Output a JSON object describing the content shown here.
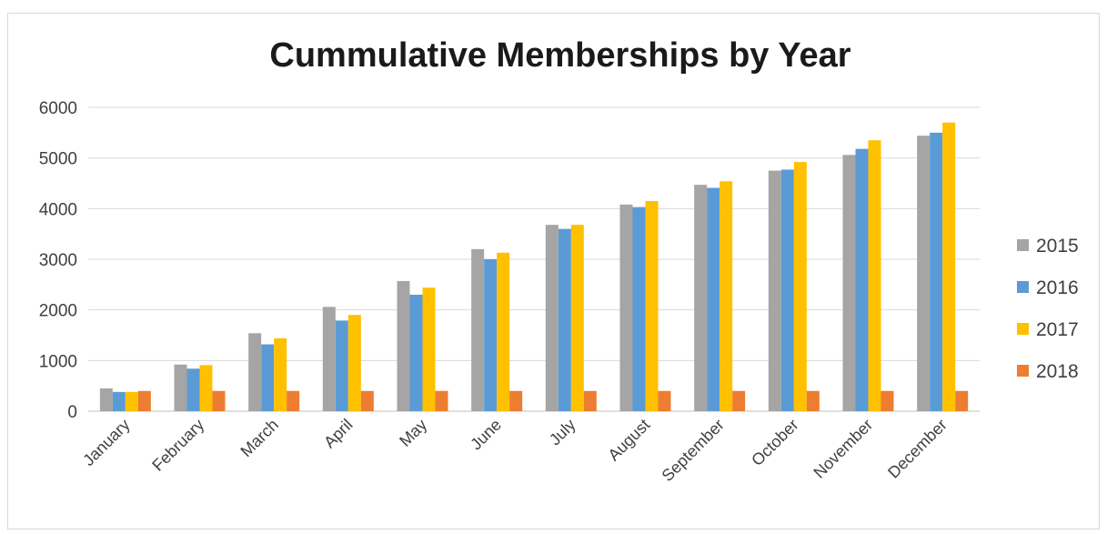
{
  "chart_data": {
    "type": "bar",
    "title": "Cummulative Memberships by Year",
    "xlabel": "",
    "ylabel": "",
    "ylim": [
      0,
      6000
    ],
    "yticks": [
      0,
      1000,
      2000,
      3000,
      4000,
      5000,
      6000
    ],
    "grid": true,
    "legend_position": "right",
    "categories": [
      "January",
      "February",
      "March",
      "April",
      "May",
      "June",
      "July",
      "August",
      "September",
      "October",
      "November",
      "December"
    ],
    "series": [
      {
        "name": "2015",
        "color": "#a5a5a5",
        "values": [
          450,
          920,
          1540,
          2060,
          2570,
          3200,
          3680,
          4080,
          4470,
          4750,
          5060,
          5440
        ]
      },
      {
        "name": "2016",
        "color": "#5b9bd5",
        "values": [
          380,
          840,
          1320,
          1790,
          2300,
          3000,
          3600,
          4030,
          4410,
          4770,
          5180,
          5500
        ]
      },
      {
        "name": "2017",
        "color": "#ffc000",
        "values": [
          380,
          910,
          1440,
          1900,
          2440,
          3130,
          3680,
          4150,
          4540,
          4920,
          5350,
          5700
        ]
      },
      {
        "name": "2018",
        "color": "#ed7d31",
        "values": [
          400,
          400,
          400,
          400,
          400,
          400,
          400,
          400,
          400,
          400,
          400,
          400
        ]
      }
    ]
  }
}
